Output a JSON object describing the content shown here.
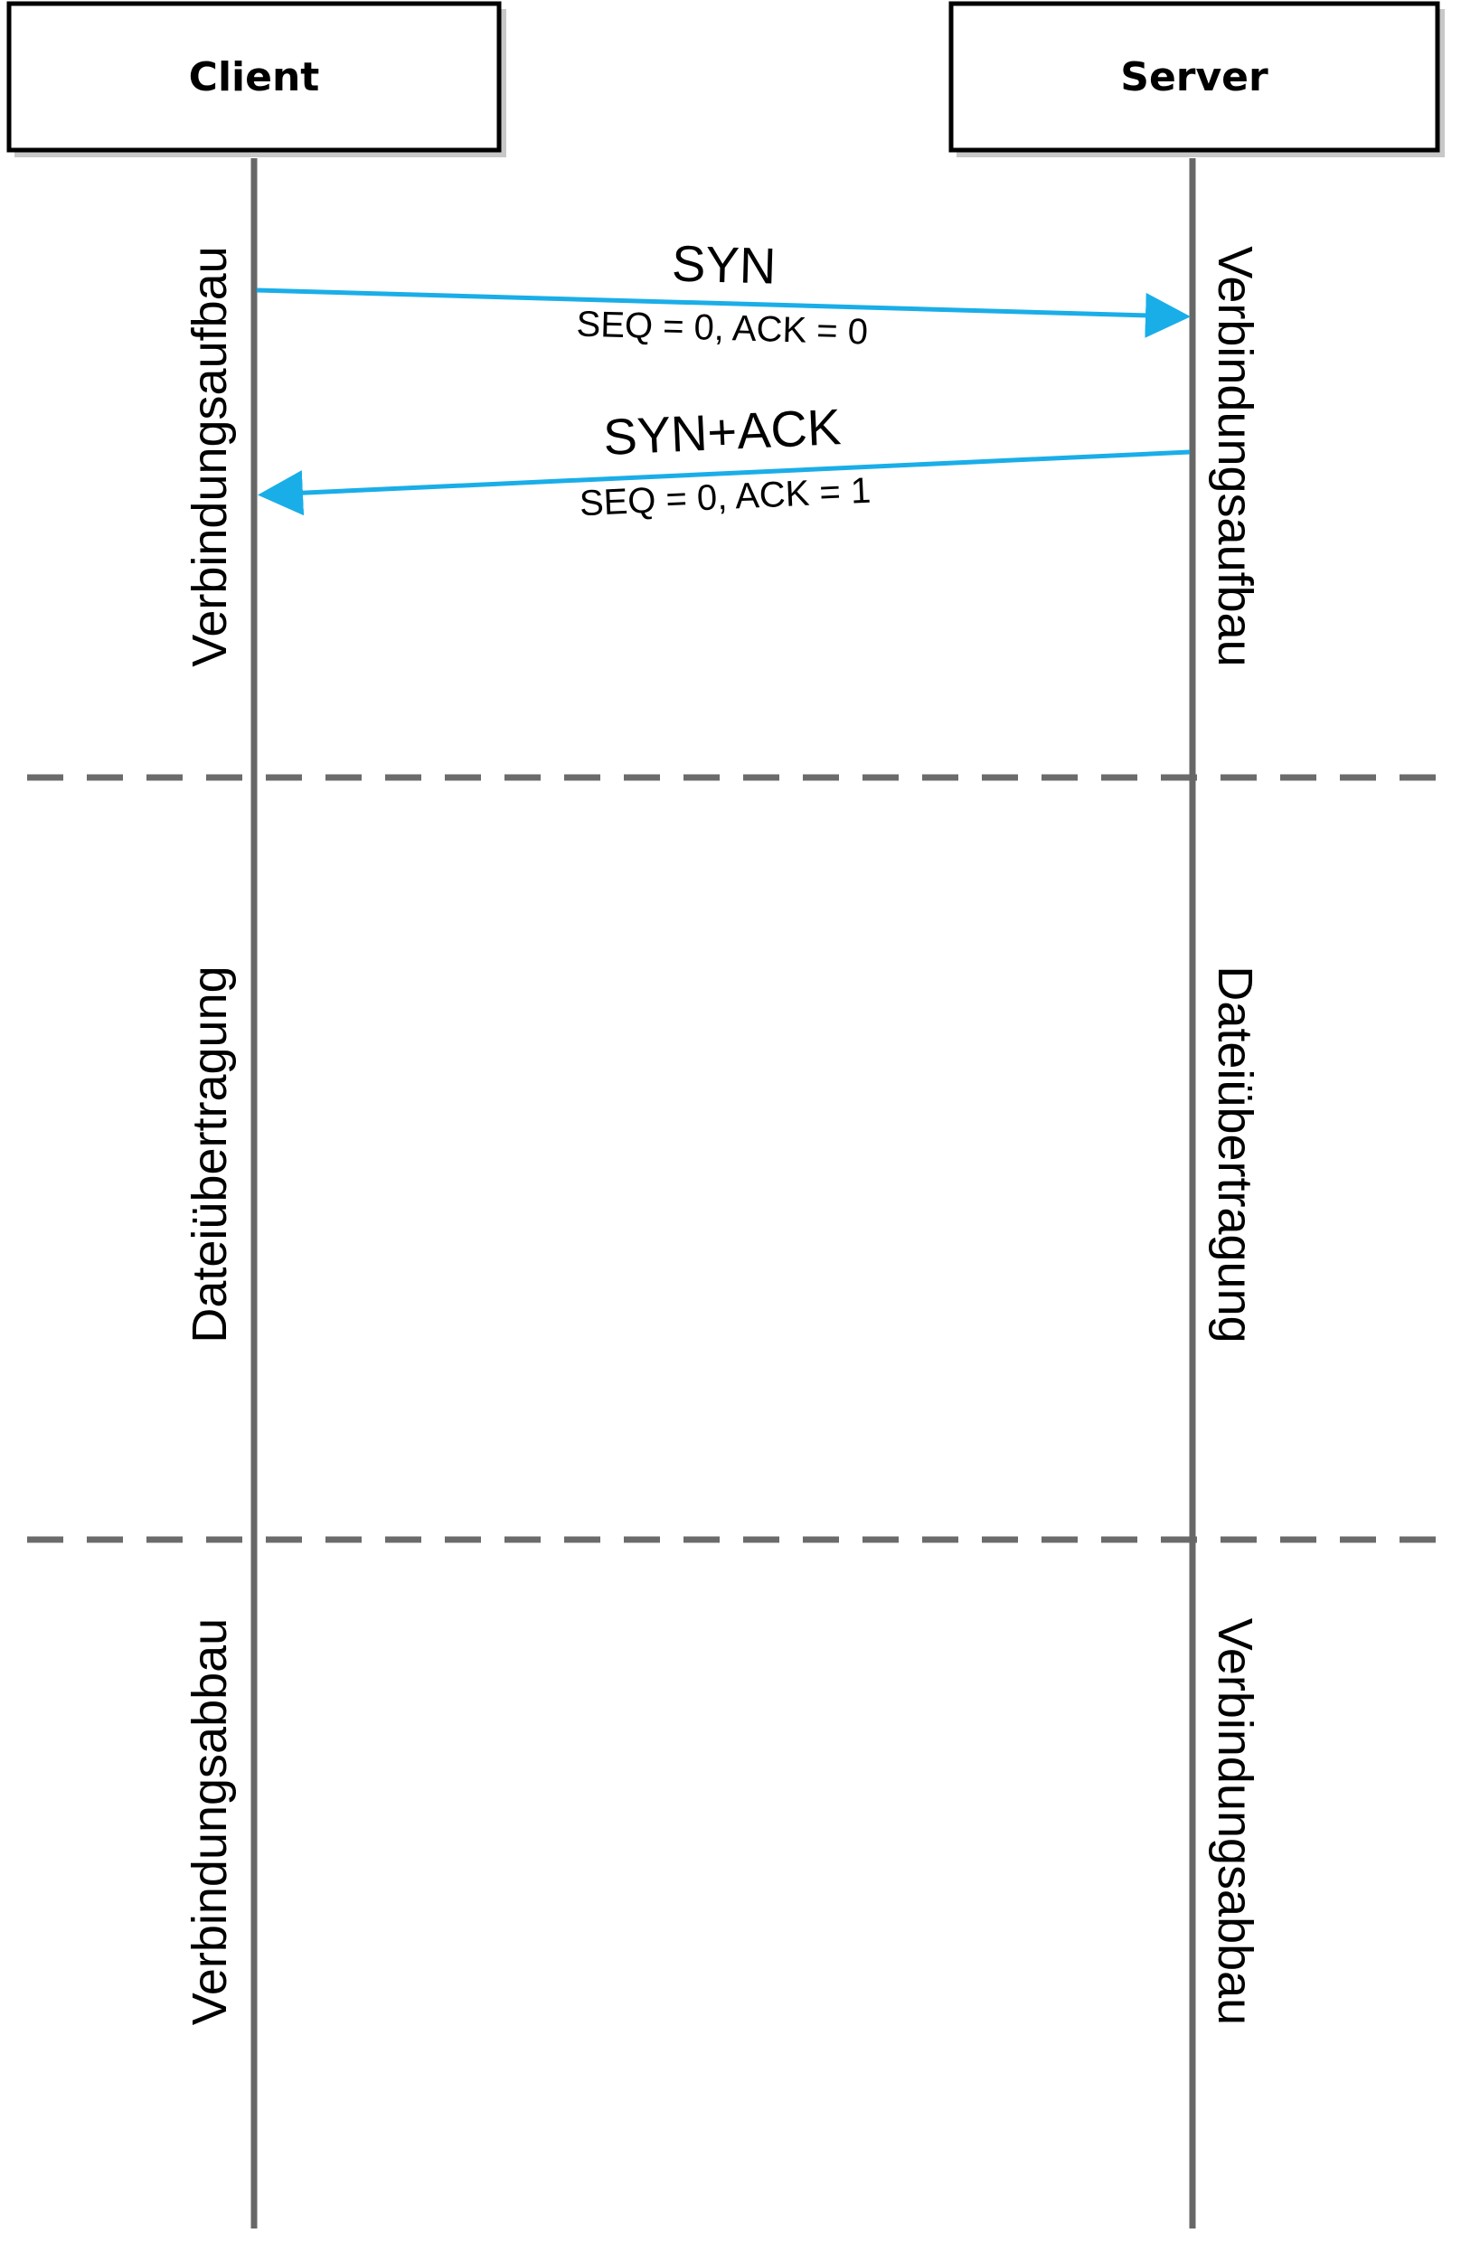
{
  "participants": {
    "client": {
      "label": "Client"
    },
    "server": {
      "label": "Server"
    }
  },
  "messages": [
    {
      "name": "SYN",
      "detail": "SEQ = 0, ACK = 0",
      "direction": "client-to-server"
    },
    {
      "name": "SYN+ACK",
      "detail": "SEQ = 0, ACK = 1",
      "direction": "server-to-client"
    }
  ],
  "phases": {
    "setup": {
      "client": "Verbindungsaufbau",
      "server": "Verbindungsaufbau"
    },
    "transfer": {
      "client": "Dateiübertragung",
      "server": "Dateiübertragung"
    },
    "teardown": {
      "client": "Verbindungsabbau",
      "server": "Verbindungsabbau"
    }
  },
  "colors": {
    "arrow": "#1aaee8",
    "lifeline": "#676767",
    "separator": "#6b6b6b",
    "box_border": "#000000",
    "box_shadow": "#c8c8c8"
  }
}
